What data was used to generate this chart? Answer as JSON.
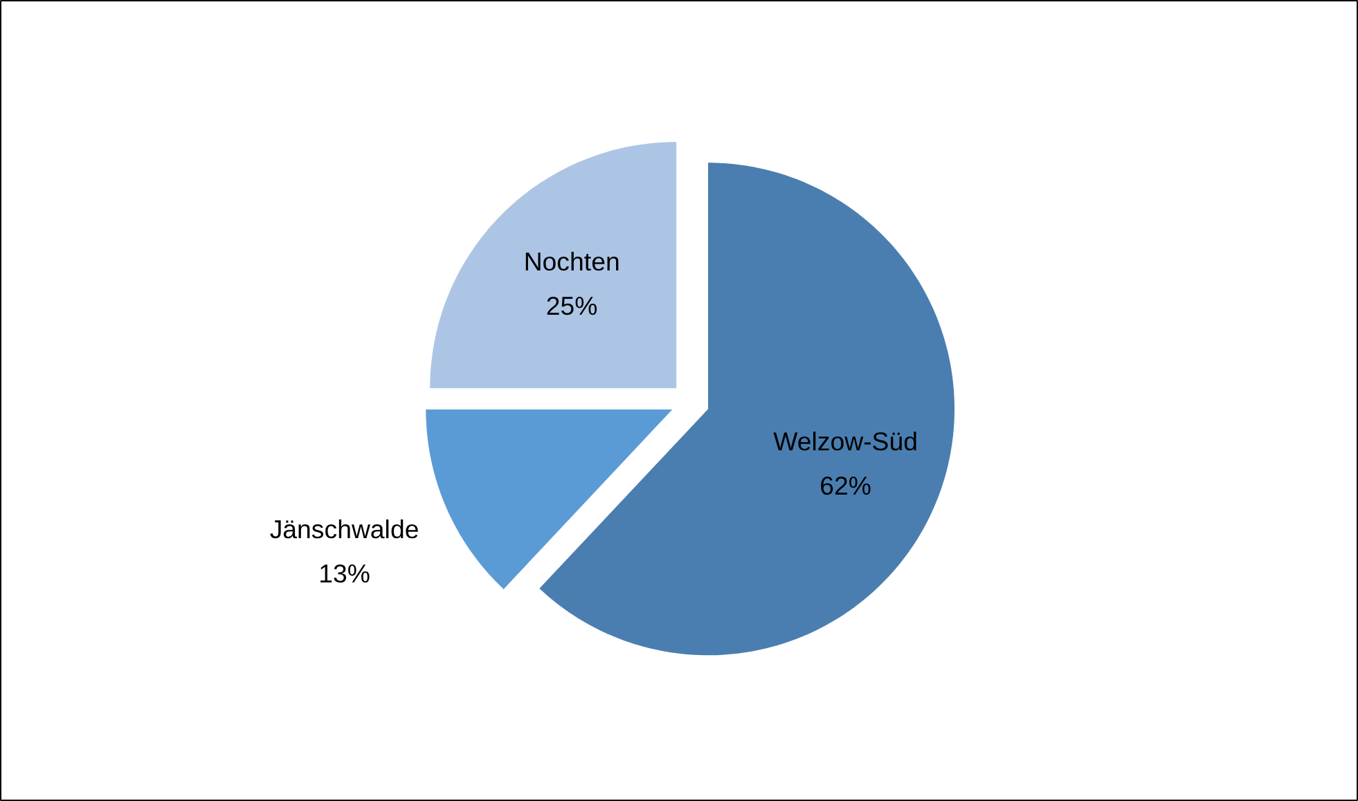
{
  "chart_data": {
    "type": "pie",
    "categories": [
      "Welzow-Süd",
      "Jänschwalde",
      "Nochten"
    ],
    "values": [
      62,
      13,
      25
    ],
    "value_labels": [
      "62%",
      "13%",
      "25%"
    ],
    "colors": [
      "#4a7eb0",
      "#5b9bd5",
      "#adc5e5"
    ]
  }
}
